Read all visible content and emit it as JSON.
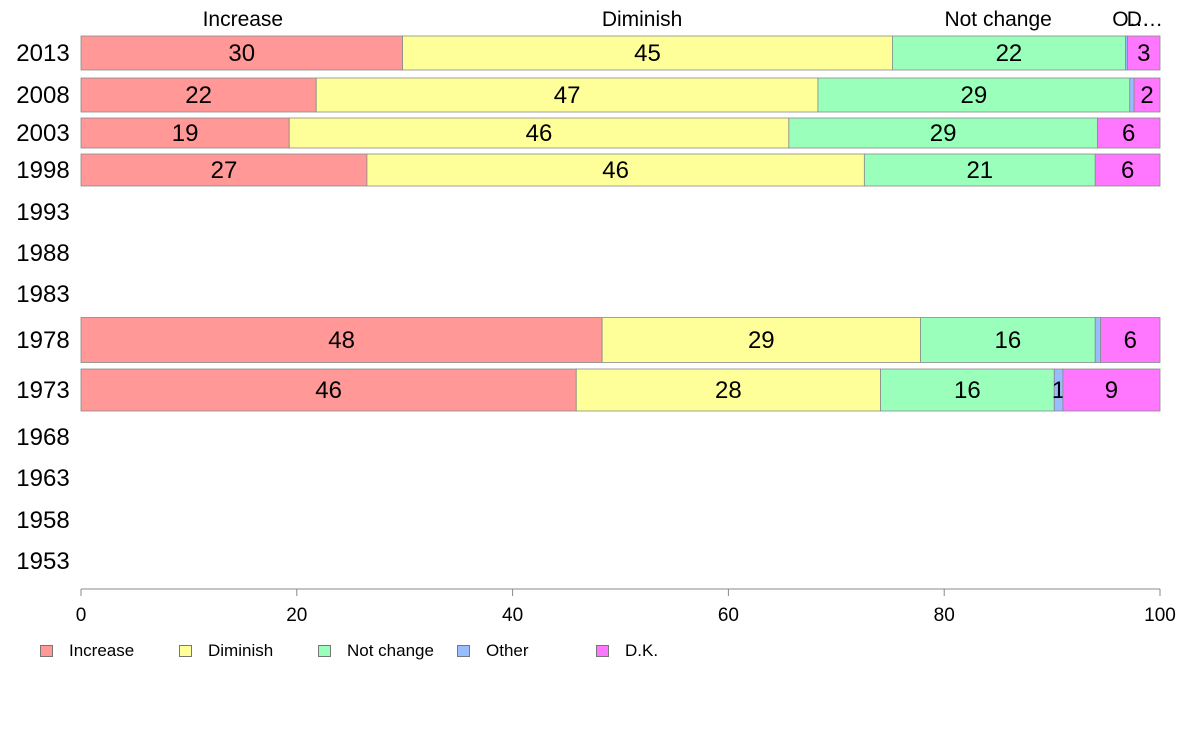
{
  "chart_data": {
    "type": "bar",
    "orientation": "horizontal",
    "stacked": true,
    "title": "",
    "xlabel": "",
    "ylabel": "",
    "xlim": [
      0,
      100
    ],
    "xticks": [
      0,
      20,
      40,
      60,
      80,
      100
    ],
    "grid": false,
    "legend_position": "bottom-left",
    "column_headers": [
      {
        "label": "Increase",
        "x": 15
      },
      {
        "label": "Diminish",
        "x": 52
      },
      {
        "label": "Not change",
        "x": 85
      },
      {
        "label": "O…",
        "x": 97.3
      },
      {
        "label": "D…",
        "x": 98.6
      }
    ],
    "categories": [
      "2013",
      "2008",
      "2003",
      "1998",
      "1993",
      "1988",
      "1983",
      "1978",
      "1973",
      "1968",
      "1963",
      "1958",
      "1953"
    ],
    "series": [
      {
        "name": "Increase",
        "color": "#FF9896",
        "values": [
          29.8,
          21.8,
          19.3,
          26.5,
          null,
          null,
          null,
          48.3,
          45.9,
          null,
          null,
          null,
          null
        ],
        "labels": [
          "30",
          "22",
          "19",
          "27",
          "",
          "",
          "",
          "48",
          "46",
          "",
          "",
          "",
          ""
        ]
      },
      {
        "name": "Diminish",
        "color": "#FFFF99",
        "values": [
          45.4,
          46.5,
          46.3,
          46.1,
          null,
          null,
          null,
          29.5,
          28.2,
          null,
          null,
          null,
          null
        ],
        "labels": [
          "45",
          "47",
          "46",
          "46",
          "",
          "",
          "",
          "29",
          "28",
          "",
          "",
          "",
          ""
        ]
      },
      {
        "name": "Not change",
        "color": "#99FFBB",
        "values": [
          21.6,
          28.9,
          28.6,
          21.4,
          null,
          null,
          null,
          16.2,
          16.1,
          null,
          null,
          null,
          null
        ],
        "labels": [
          "22",
          "29",
          "29",
          "21",
          "",
          "",
          "",
          "16",
          "16",
          "",
          "",
          "",
          ""
        ]
      },
      {
        "name": "Other",
        "color": "#99BBFF",
        "values": [
          0.2,
          0.4,
          0,
          0,
          null,
          null,
          null,
          0.5,
          0.8,
          null,
          null,
          null,
          null
        ],
        "labels": [
          "",
          "",
          "",
          "",
          "",
          "",
          "",
          "",
          "1",
          "",
          "",
          "",
          ""
        ]
      },
      {
        "name": "D.K.",
        "color": "#FF77FF",
        "values": [
          3.0,
          2.4,
          5.8,
          6.0,
          null,
          null,
          null,
          5.5,
          9.0,
          null,
          null,
          null,
          null
        ],
        "labels": [
          "3",
          "2",
          "6",
          "6",
          "",
          "",
          "",
          "6",
          "9",
          "",
          "",
          "",
          ""
        ]
      }
    ]
  }
}
